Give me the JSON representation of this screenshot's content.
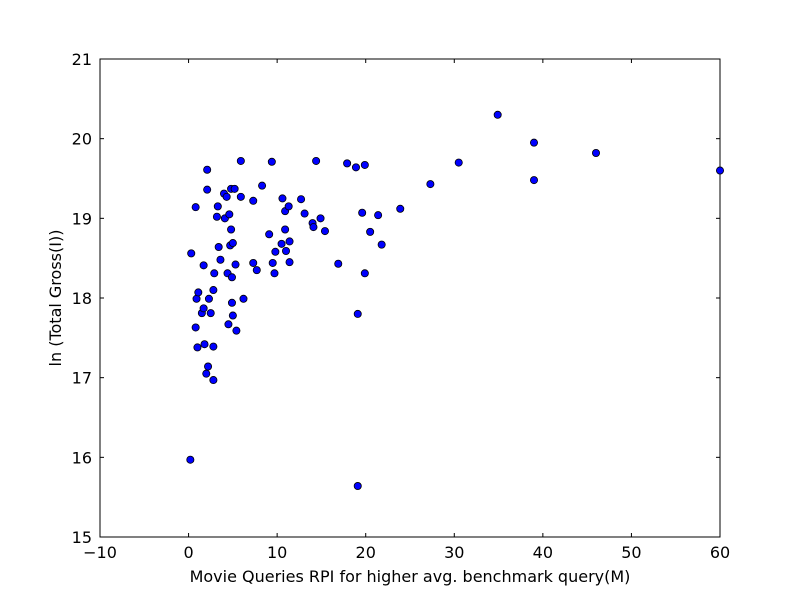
{
  "chart_data": {
    "type": "scatter",
    "xlabel": "Movie Queries RPI for higher avg. benchmark query(M)",
    "ylabel": "ln (Total Gross(I))",
    "xlim": [
      -10,
      60
    ],
    "ylim": [
      15,
      21
    ],
    "xticks": [
      -10,
      0,
      10,
      20,
      30,
      40,
      50,
      60
    ],
    "xtick_labels": [
      "−10",
      "0",
      "10",
      "20",
      "30",
      "40",
      "50",
      "60"
    ],
    "yticks": [
      15,
      16,
      17,
      18,
      19,
      20,
      21
    ],
    "ytick_labels": [
      "15",
      "16",
      "17",
      "18",
      "19",
      "20",
      "21"
    ],
    "grid": false,
    "marker_color": "#0000ff",
    "points": [
      {
        "x": 0.2,
        "y": 15.97
      },
      {
        "x": 0.3,
        "y": 18.56
      },
      {
        "x": 0.8,
        "y": 19.14
      },
      {
        "x": 0.8,
        "y": 17.63
      },
      {
        "x": 0.9,
        "y": 17.99
      },
      {
        "x": 1.0,
        "y": 17.38
      },
      {
        "x": 1.1,
        "y": 18.07
      },
      {
        "x": 1.5,
        "y": 17.81
      },
      {
        "x": 1.7,
        "y": 17.87
      },
      {
        "x": 1.7,
        "y": 18.41
      },
      {
        "x": 1.8,
        "y": 17.42
      },
      {
        "x": 2.0,
        "y": 17.05
      },
      {
        "x": 2.1,
        "y": 19.61
      },
      {
        "x": 2.1,
        "y": 19.36
      },
      {
        "x": 2.2,
        "y": 17.14
      },
      {
        "x": 2.3,
        "y": 17.99
      },
      {
        "x": 2.5,
        "y": 17.81
      },
      {
        "x": 2.8,
        "y": 17.39
      },
      {
        "x": 2.8,
        "y": 16.97
      },
      {
        "x": 2.8,
        "y": 18.1
      },
      {
        "x": 2.9,
        "y": 18.31
      },
      {
        "x": 3.2,
        "y": 19.02
      },
      {
        "x": 3.3,
        "y": 19.15
      },
      {
        "x": 3.4,
        "y": 18.64
      },
      {
        "x": 3.6,
        "y": 18.48
      },
      {
        "x": 4.0,
        "y": 19.31
      },
      {
        "x": 4.1,
        "y": 19.0
      },
      {
        "x": 4.3,
        "y": 19.27
      },
      {
        "x": 4.4,
        "y": 18.31
      },
      {
        "x": 4.5,
        "y": 17.67
      },
      {
        "x": 4.6,
        "y": 19.05
      },
      {
        "x": 4.7,
        "y": 18.66
      },
      {
        "x": 4.8,
        "y": 18.86
      },
      {
        "x": 4.8,
        "y": 19.37
      },
      {
        "x": 4.9,
        "y": 18.26
      },
      {
        "x": 4.9,
        "y": 17.94
      },
      {
        "x": 5.0,
        "y": 18.69
      },
      {
        "x": 5.0,
        "y": 17.78
      },
      {
        "x": 5.2,
        "y": 19.37
      },
      {
        "x": 5.3,
        "y": 18.42
      },
      {
        "x": 5.4,
        "y": 17.59
      },
      {
        "x": 5.9,
        "y": 19.72
      },
      {
        "x": 5.9,
        "y": 19.27
      },
      {
        "x": 6.2,
        "y": 17.99
      },
      {
        "x": 7.3,
        "y": 19.22
      },
      {
        "x": 7.3,
        "y": 18.44
      },
      {
        "x": 7.7,
        "y": 18.35
      },
      {
        "x": 8.3,
        "y": 19.41
      },
      {
        "x": 9.1,
        "y": 18.8
      },
      {
        "x": 9.4,
        "y": 19.71
      },
      {
        "x": 9.5,
        "y": 18.44
      },
      {
        "x": 9.7,
        "y": 18.31
      },
      {
        "x": 9.8,
        "y": 18.58
      },
      {
        "x": 10.5,
        "y": 18.68
      },
      {
        "x": 10.6,
        "y": 19.25
      },
      {
        "x": 10.9,
        "y": 19.09
      },
      {
        "x": 10.9,
        "y": 18.86
      },
      {
        "x": 11.0,
        "y": 18.59
      },
      {
        "x": 11.3,
        "y": 19.15
      },
      {
        "x": 11.4,
        "y": 18.45
      },
      {
        "x": 11.4,
        "y": 18.71
      },
      {
        "x": 12.7,
        "y": 19.24
      },
      {
        "x": 13.1,
        "y": 19.06
      },
      {
        "x": 14.0,
        "y": 18.94
      },
      {
        "x": 14.1,
        "y": 18.89
      },
      {
        "x": 14.4,
        "y": 19.72
      },
      {
        "x": 14.9,
        "y": 19.0
      },
      {
        "x": 15.4,
        "y": 18.84
      },
      {
        "x": 16.9,
        "y": 18.43
      },
      {
        "x": 17.9,
        "y": 19.69
      },
      {
        "x": 18.9,
        "y": 19.64
      },
      {
        "x": 19.1,
        "y": 17.8
      },
      {
        "x": 19.1,
        "y": 15.64
      },
      {
        "x": 19.6,
        "y": 19.07
      },
      {
        "x": 19.9,
        "y": 19.67
      },
      {
        "x": 19.9,
        "y": 18.31
      },
      {
        "x": 20.5,
        "y": 18.83
      },
      {
        "x": 21.4,
        "y": 19.04
      },
      {
        "x": 21.8,
        "y": 18.67
      },
      {
        "x": 23.9,
        "y": 19.12
      },
      {
        "x": 27.3,
        "y": 19.43
      },
      {
        "x": 30.5,
        "y": 19.7
      },
      {
        "x": 34.9,
        "y": 20.3
      },
      {
        "x": 39.0,
        "y": 19.95
      },
      {
        "x": 39.0,
        "y": 19.48
      },
      {
        "x": 46.0,
        "y": 19.82
      },
      {
        "x": 60.0,
        "y": 19.6
      }
    ]
  }
}
